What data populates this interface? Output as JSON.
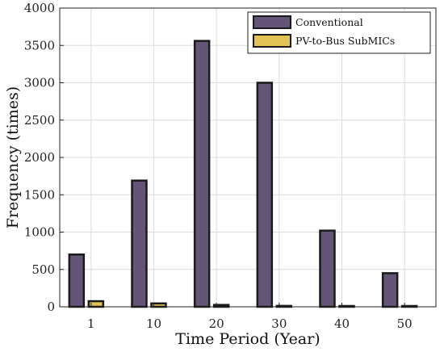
{
  "chart_data": {
    "type": "bar",
    "categories": [
      "1",
      "10",
      "20",
      "30",
      "40",
      "50"
    ],
    "series": [
      {
        "name": "Conventional",
        "values": [
          700,
          1690,
          3560,
          3000,
          1020,
          450
        ],
        "color": "#645478"
      },
      {
        "name": "PV-to-Bus SubMICs",
        "values": [
          75,
          45,
          25,
          12,
          8,
          5
        ],
        "color": "#e0c255"
      }
    ],
    "title": "",
    "xlabel": "Time Period (Year)",
    "ylabel": "Frequency (times)",
    "ylim": [
      0,
      4000
    ],
    "yticks": [
      0,
      500,
      1000,
      1500,
      2000,
      2500,
      3000,
      3500,
      4000
    ],
    "grid": true,
    "legend_position": "top-right",
    "bar_edge_color": "#1a1a1a"
  }
}
